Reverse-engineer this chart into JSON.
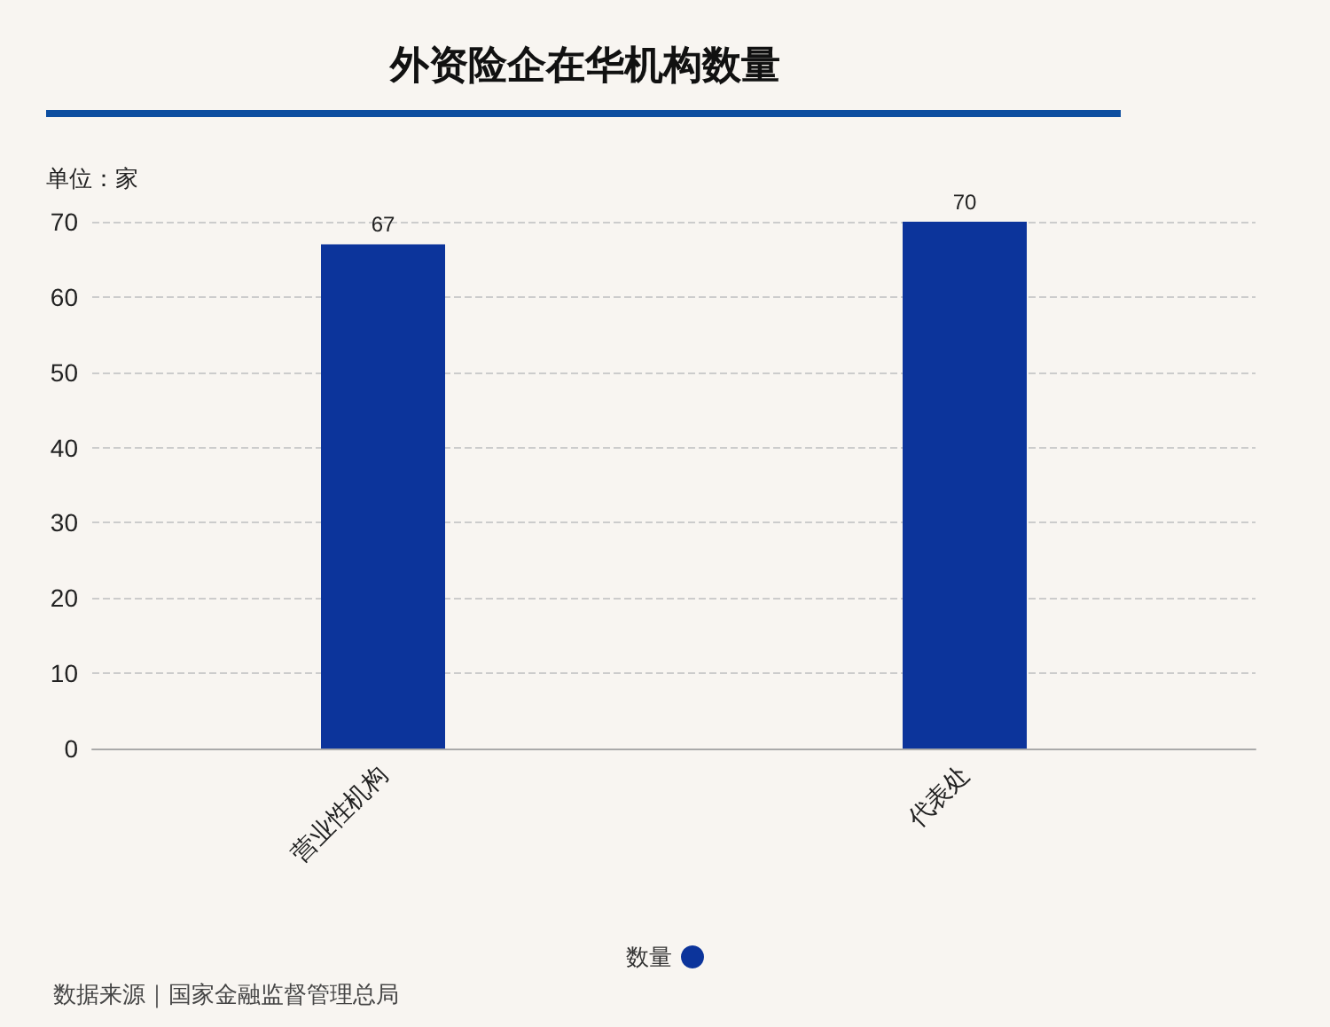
{
  "chart_data": {
    "type": "bar",
    "title": "外资险企在华机构数量",
    "ylabel": "单位：家",
    "categories": [
      "营业性机构",
      "代表处"
    ],
    "series": [
      {
        "name": "数量",
        "color": "#0c349b",
        "values": [
          67,
          70
        ]
      }
    ],
    "ylim": [
      0,
      70
    ],
    "yticks": [
      0,
      10,
      20,
      30,
      40,
      50,
      60,
      70
    ],
    "grid": "y",
    "legend": "bottom",
    "data_labels": true,
    "annotations": [
      "数据来源｜国家金融监督管理总局"
    ]
  }
}
